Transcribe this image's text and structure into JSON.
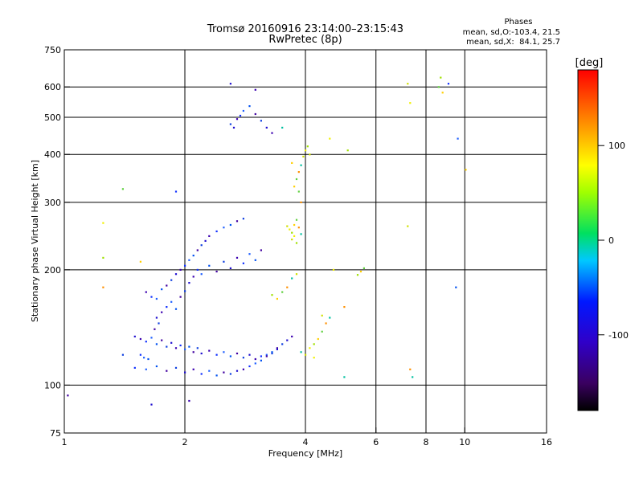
{
  "chart_data": {
    "type": "scatter",
    "title": "Tromsø 20160916 23:14:00–23:15:43",
    "subtitle": "RwPretec (8p)",
    "stats_header": "Phases",
    "stats_line1": "mean, sd,O:-103.4, 21.5",
    "stats_line2": "mean, sd,X:  84.1, 25.7",
    "xlabel": "Frequency [MHz]",
    "ylabel": "Stationary phase Virtual Height [km]",
    "x_scale": "log",
    "y_scale": "log",
    "xlim": [
      1,
      16
    ],
    "ylim": [
      75,
      750
    ],
    "x_ticks": [
      1,
      2,
      4,
      6,
      8,
      10,
      16
    ],
    "x_tick_labels": [
      "1",
      "2",
      "4",
      "6",
      "8",
      "10",
      "16"
    ],
    "x_grid_lines": [
      2,
      4,
      6,
      8,
      10
    ],
    "y_ticks": [
      75,
      100,
      200,
      300,
      400,
      500,
      600,
      750
    ],
    "y_tick_labels": [
      "75",
      "100",
      "200",
      "300",
      "400",
      "500",
      "600",
      "750"
    ],
    "y_grid_lines": [
      100,
      200,
      300,
      400,
      500,
      600
    ],
    "grid": true,
    "colorbar": {
      "label": "[deg]",
      "range": [
        -180,
        180
      ],
      "ticks": [
        100,
        0,
        -100
      ],
      "tick_labels": [
        "100",
        "0",
        "-100"
      ]
    },
    "series": [
      {
        "mode": "O",
        "points": [
          [
            1.5,
            134
          ],
          [
            1.55,
            132
          ],
          [
            1.6,
            130
          ],
          [
            1.65,
            133
          ],
          [
            1.7,
            128
          ],
          [
            1.75,
            131
          ],
          [
            1.8,
            126
          ],
          [
            1.85,
            129
          ],
          [
            1.9,
            125
          ],
          [
            1.95,
            127
          ],
          [
            2.0,
            124
          ],
          [
            2.05,
            126
          ],
          [
            2.1,
            122
          ],
          [
            2.15,
            125
          ],
          [
            2.2,
            121
          ],
          [
            2.3,
            123
          ],
          [
            2.4,
            120
          ],
          [
            2.5,
            122
          ],
          [
            2.6,
            119
          ],
          [
            2.7,
            121
          ],
          [
            2.8,
            118
          ],
          [
            2.9,
            120
          ],
          [
            3.0,
            117
          ],
          [
            3.1,
            119
          ],
          [
            3.2,
            120
          ],
          [
            3.3,
            122
          ],
          [
            3.4,
            125
          ],
          [
            3.5,
            128
          ],
          [
            3.6,
            131
          ],
          [
            3.7,
            134
          ],
          [
            1.5,
            111
          ],
          [
            1.6,
            110
          ],
          [
            1.7,
            112
          ],
          [
            1.8,
            109
          ],
          [
            1.9,
            111
          ],
          [
            2.0,
            108
          ],
          [
            2.1,
            110
          ],
          [
            2.2,
            107
          ],
          [
            2.3,
            109
          ],
          [
            2.4,
            106
          ],
          [
            2.5,
            108
          ],
          [
            2.6,
            107
          ],
          [
            2.7,
            109
          ],
          [
            2.8,
            110
          ],
          [
            2.9,
            112
          ],
          [
            3.0,
            114
          ],
          [
            3.1,
            116
          ],
          [
            3.2,
            119
          ],
          [
            3.3,
            121
          ],
          [
            3.4,
            124
          ],
          [
            1.6,
            175
          ],
          [
            1.65,
            170
          ],
          [
            1.7,
            168
          ],
          [
            1.75,
            178
          ],
          [
            1.8,
            182
          ],
          [
            1.85,
            188
          ],
          [
            1.9,
            195
          ],
          [
            1.95,
            200
          ],
          [
            2.0,
            205
          ],
          [
            2.05,
            212
          ],
          [
            2.1,
            218
          ],
          [
            2.15,
            225
          ],
          [
            2.2,
            232
          ],
          [
            2.25,
            238
          ],
          [
            2.3,
            245
          ],
          [
            2.4,
            252
          ],
          [
            2.5,
            258
          ],
          [
            2.6,
            262
          ],
          [
            2.7,
            268
          ],
          [
            2.8,
            272
          ],
          [
            1.7,
            150
          ],
          [
            1.75,
            155
          ],
          [
            1.8,
            160
          ],
          [
            1.85,
            165
          ],
          [
            1.9,
            158
          ],
          [
            1.95,
            170
          ],
          [
            2.0,
            176
          ],
          [
            2.05,
            185
          ],
          [
            2.1,
            192
          ],
          [
            2.15,
            200
          ],
          [
            2.2,
            195
          ],
          [
            2.3,
            205
          ],
          [
            2.4,
            198
          ],
          [
            2.5,
            210
          ],
          [
            2.6,
            202
          ],
          [
            2.7,
            215
          ],
          [
            2.8,
            208
          ],
          [
            2.9,
            220
          ],
          [
            3.0,
            212
          ],
          [
            3.1,
            225
          ],
          [
            2.6,
            480
          ],
          [
            2.65,
            470
          ],
          [
            2.7,
            495
          ],
          [
            2.75,
            505
          ],
          [
            2.8,
            520
          ],
          [
            2.9,
            535
          ],
          [
            3.0,
            510
          ],
          [
            3.1,
            490
          ],
          [
            3.2,
            470
          ],
          [
            3.3,
            455
          ],
          [
            1.55,
            120
          ],
          [
            1.58,
            118
          ],
          [
            1.62,
            117
          ],
          [
            1.68,
            140
          ],
          [
            1.72,
            145
          ],
          [
            2.6,
            612
          ],
          [
            3.0,
            590
          ],
          [
            9.1,
            612
          ],
          [
            9.6,
            440
          ],
          [
            9.5,
            180
          ],
          [
            1.02,
            94
          ],
          [
            1.4,
            120
          ],
          [
            1.65,
            89
          ],
          [
            2.05,
            91
          ],
          [
            1.9,
            320
          ]
        ]
      },
      {
        "mode": "X",
        "points": [
          [
            3.6,
            260
          ],
          [
            3.65,
            255
          ],
          [
            3.7,
            250
          ],
          [
            3.75,
            262
          ],
          [
            3.8,
            270
          ],
          [
            3.85,
            258
          ],
          [
            3.9,
            248
          ],
          [
            3.7,
            240
          ],
          [
            3.75,
            245
          ],
          [
            3.8,
            235
          ],
          [
            3.75,
            330
          ],
          [
            3.8,
            345
          ],
          [
            3.85,
            360
          ],
          [
            3.9,
            375
          ],
          [
            3.95,
            395
          ],
          [
            4.0,
            410
          ],
          [
            4.05,
            420
          ],
          [
            3.7,
            380
          ],
          [
            3.85,
            320
          ],
          [
            3.9,
            300
          ],
          [
            3.9,
            122
          ],
          [
            4.0,
            120
          ],
          [
            4.1,
            125
          ],
          [
            4.2,
            128
          ],
          [
            4.3,
            132
          ],
          [
            4.4,
            138
          ],
          [
            4.5,
            145
          ],
          [
            4.6,
            150
          ],
          [
            4.4,
            152
          ],
          [
            4.2,
            118
          ],
          [
            3.3,
            172
          ],
          [
            3.4,
            168
          ],
          [
            3.5,
            175
          ],
          [
            3.6,
            180
          ],
          [
            3.7,
            190
          ],
          [
            3.8,
            195
          ],
          [
            4.7,
            200
          ],
          [
            5.4,
            194
          ],
          [
            5.5,
            198
          ],
          [
            5.6,
            202
          ],
          [
            5.0,
            160
          ],
          [
            5.0,
            105
          ],
          [
            7.2,
            260
          ],
          [
            7.3,
            545
          ],
          [
            8.7,
            635
          ],
          [
            8.8,
            580
          ],
          [
            8.6,
            600
          ],
          [
            7.3,
            110
          ],
          [
            7.4,
            105
          ],
          [
            7.2,
            612
          ],
          [
            1.25,
            265
          ],
          [
            1.25,
            215
          ],
          [
            1.55,
            210
          ],
          [
            1.4,
            325
          ],
          [
            1.25,
            180
          ],
          [
            3.5,
            470
          ],
          [
            4.1,
            400
          ],
          [
            4.6,
            440
          ],
          [
            5.1,
            410
          ],
          [
            10.05,
            365
          ]
        ]
      }
    ]
  }
}
